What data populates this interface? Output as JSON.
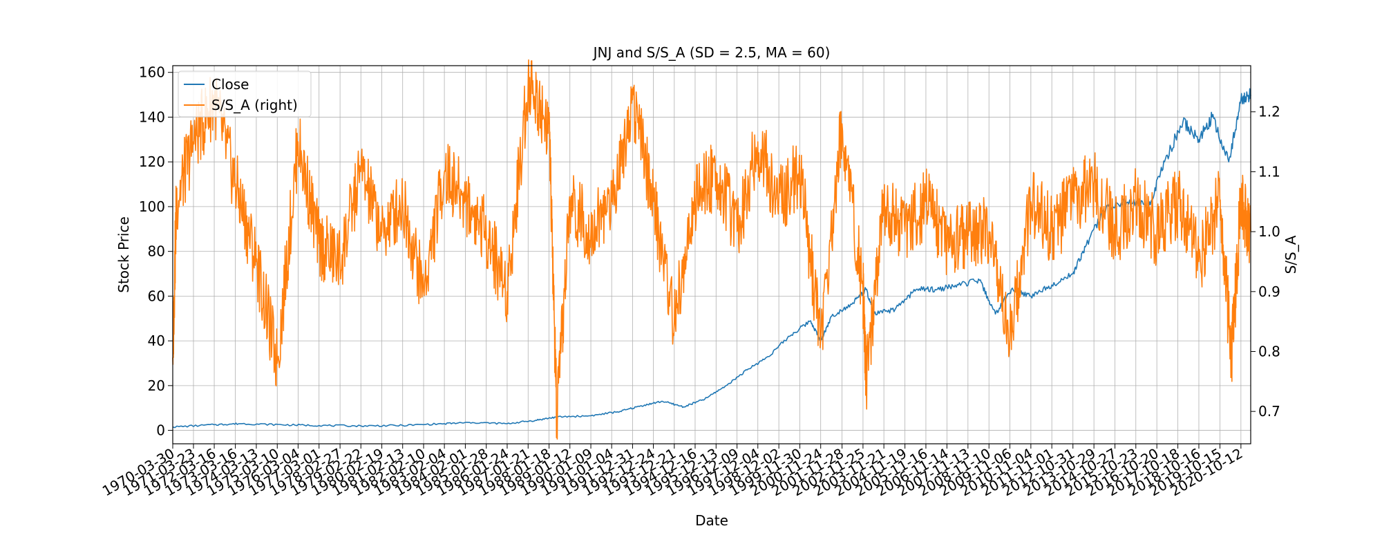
{
  "chart_data": {
    "type": "line",
    "title": "JNJ and S/S_A (SD = 2.5, MA = 60)",
    "xlabel": "Date",
    "ylabel": "Stock Price",
    "ylabel_right": "S/S_A",
    "grid": true,
    "legend_placement": "top-left",
    "xlim": [
      "1970-03-30",
      "2021-03-30"
    ],
    "ylim": [
      -6,
      163
    ],
    "ylim_right": [
      0.646,
      1.277
    ],
    "yticks": [
      0,
      20,
      40,
      60,
      80,
      100,
      120,
      140,
      160
    ],
    "yticks_right": [
      0.7,
      0.8,
      0.9,
      1.0,
      1.1,
      1.2
    ],
    "yticks_right_labels": [
      "0.7",
      "0.8",
      "0.9",
      "1.0",
      "1.1",
      "1.2"
    ],
    "x_tick_labels": [
      "1970-03-30",
      "1971-03-23",
      "1972-03-16",
      "1973-03-16",
      "1974-03-13",
      "1975-03-10",
      "1976-03-04",
      "1977-03-01",
      "1978-02-27",
      "1979-02-22",
      "1980-02-19",
      "1981-02-13",
      "1982-02-10",
      "1983-02-04",
      "1984-02-01",
      "1985-01-28",
      "1986-01-24",
      "1987-01-21",
      "1988-01-18",
      "1989-01-12",
      "1990-01-09",
      "1991-01-04",
      "1991-12-31",
      "1992-12-24",
      "1993-12-21",
      "1994-12-16",
      "1995-12-13",
      "1996-12-09",
      "1997-12-04",
      "1998-12-02",
      "1999-11-30",
      "2000-11-24",
      "2001-11-28",
      "2002-11-25",
      "2003-11-21",
      "2004-11-19",
      "2005-11-16",
      "2006-11-14",
      "2007-11-13",
      "2008-11-10",
      "2009-11-06",
      "2010-11-04",
      "2011-11-01",
      "2012-10-31",
      "2013-10-29",
      "2014-10-27",
      "2015-10-23",
      "2016-10-20",
      "2017-10-18",
      "2018-10-16",
      "2019-10-15",
      "2020-10-12"
    ],
    "series": [
      {
        "name": "Close",
        "axis": "left",
        "color": "#1f77b4",
        "x": [
          "1970-03-30",
          "1972-03-16",
          "1973-06-01",
          "1975-06-01",
          "1977-03-01",
          "1979-02-22",
          "1981-02-13",
          "1983-02-04",
          "1984-06-01",
          "1986-01-24",
          "1987-06-01",
          "1988-06-01",
          "1990-01-09",
          "1991-06-01",
          "1992-06-01",
          "1993-06-01",
          "1994-06-01",
          "1995-06-01",
          "1996-06-01",
          "1997-06-01",
          "1998-06-01",
          "1999-06-01",
          "2000-06-01",
          "2000-11-24",
          "2001-06-01",
          "2002-06-01",
          "2003-01-15",
          "2003-06-01",
          "2004-06-01",
          "2005-06-01",
          "2006-06-01",
          "2007-06-01",
          "2008-06-01",
          "2009-03-01",
          "2009-12-01",
          "2010-11-04",
          "2011-11-01",
          "2012-10-31",
          "2013-06-01",
          "2014-06-01",
          "2015-06-01",
          "2016-06-01",
          "2017-03-01",
          "2018-01-15",
          "2018-10-16",
          "2019-06-01",
          "2020-03-15",
          "2020-10-12",
          "2021-03-30"
        ],
        "y": [
          1.5,
          2.5,
          3.0,
          2.5,
          2.2,
          2.0,
          2.2,
          3.0,
          3.5,
          3.0,
          4.5,
          6.0,
          6.5,
          8.5,
          11.0,
          13.0,
          10.5,
          14.0,
          20.0,
          27.0,
          33.0,
          42.0,
          49.0,
          40.0,
          51.0,
          57.0,
          63.0,
          52.0,
          54.0,
          63.0,
          63.0,
          65.0,
          67.0,
          52.0,
          63.0,
          60.0,
          65.0,
          70.0,
          82.0,
          100.0,
          102.0,
          100.0,
          120.0,
          138.0,
          130.0,
          140.0,
          120.0,
          148.0,
          150.0
        ]
      },
      {
        "name": "S/S_A (right)",
        "axis": "right",
        "color": "#ff7f0e",
        "x": [
          "1970-03-30",
          "1970-06-01",
          "1971-03-23",
          "1972-03-16",
          "1973-03-16",
          "1974-03-13",
          "1975-03-10",
          "1976-03-04",
          "1977-03-01",
          "1978-02-27",
          "1979-02-22",
          "1980-02-19",
          "1981-02-13",
          "1982-02-10",
          "1983-02-04",
          "1984-02-01",
          "1985-01-28",
          "1986-01-24",
          "1987-01-21",
          "1988-01-18",
          "1988-06-01",
          "1989-01-12",
          "1990-01-09",
          "1991-01-04",
          "1991-12-31",
          "1992-12-24",
          "1993-12-21",
          "1994-12-16",
          "1995-12-13",
          "1996-12-09",
          "1997-12-04",
          "1998-12-02",
          "1999-11-30",
          "2000-11-24",
          "2001-11-28",
          "2002-11-25",
          "2003-01-20",
          "2003-11-21",
          "2004-11-19",
          "2005-11-16",
          "2006-11-14",
          "2007-11-13",
          "2008-11-10",
          "2009-11-06",
          "2010-11-04",
          "2011-11-01",
          "2012-10-31",
          "2013-10-29",
          "2014-10-27",
          "2015-10-23",
          "2016-10-20",
          "2017-10-18",
          "2018-10-16",
          "2019-10-15",
          "2020-05-01",
          "2020-10-12",
          "2021-03-30"
        ],
        "y": [
          0.79,
          1.05,
          1.15,
          1.22,
          1.08,
          0.95,
          0.78,
          1.15,
          0.98,
          0.95,
          1.1,
          1.0,
          1.05,
          0.9,
          1.1,
          1.05,
          1.0,
          0.9,
          1.25,
          1.18,
          0.68,
          1.05,
          1.0,
          1.05,
          1.22,
          1.05,
          0.85,
          1.05,
          1.1,
          1.0,
          1.15,
          1.05,
          1.1,
          0.82,
          1.18,
          0.9,
          0.75,
          1.05,
          1.0,
          1.05,
          0.98,
          1.0,
          1.0,
          0.82,
          1.05,
          1.0,
          1.05,
          1.08,
          1.0,
          1.05,
          1.0,
          1.05,
          0.95,
          1.05,
          0.79,
          1.05,
          1.0
        ]
      }
    ]
  }
}
